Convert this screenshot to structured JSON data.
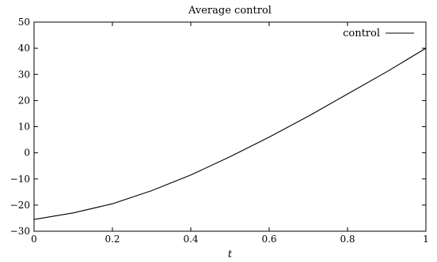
{
  "chart_data": {
    "type": "line",
    "title": "Average control",
    "xlabel": "t",
    "ylabel": "",
    "xlim": [
      0,
      1
    ],
    "ylim": [
      -30,
      50
    ],
    "xticks": [
      0,
      0.2,
      0.4,
      0.6,
      0.8,
      1
    ],
    "xtick_labels": [
      "0",
      "0.2",
      "0.4",
      "0.6",
      "0.8",
      "1"
    ],
    "yticks": [
      -30,
      -20,
      -10,
      0,
      10,
      20,
      30,
      40,
      50
    ],
    "ytick_labels": [
      "−30",
      "−20",
      "−10",
      "0",
      "10",
      "20",
      "30",
      "40",
      "50"
    ],
    "grid": false,
    "legend_position": "top-right",
    "series": [
      {
        "name": "control",
        "color": "#000000",
        "x": [
          0,
          0.1,
          0.2,
          0.3,
          0.4,
          0.5,
          0.6,
          0.7,
          0.8,
          0.9,
          1.0
        ],
        "y": [
          -25.5,
          -23.0,
          -19.5,
          -14.5,
          -8.5,
          -1.5,
          6.0,
          14.0,
          22.5,
          31.0,
          40.0
        ]
      }
    ]
  }
}
